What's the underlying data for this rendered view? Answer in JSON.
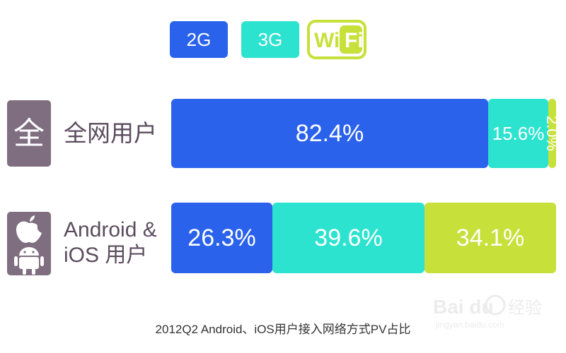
{
  "legend": {
    "items": [
      {
        "label": "2G",
        "color": "#2a62ec"
      },
      {
        "label": "3G",
        "color": "#2ce3cf"
      },
      {
        "label": "WiFi",
        "color": "#c7e03a"
      }
    ]
  },
  "rows": {
    "full": {
      "label": "全网用户",
      "icon_text": "全"
    },
    "android_ios": {
      "label_line1": "Android &",
      "label_line2": "iOS 用户"
    }
  },
  "caption": "2012Q2 Android、iOS用户接入网络方式PV占比",
  "watermark": {
    "brand": "Bai du",
    "sub": "jingyan.baidu.com",
    "cn": "经验"
  },
  "chart_data": {
    "type": "bar",
    "orientation": "horizontal-stacked-100",
    "categories": [
      "全网用户",
      "Android & iOS 用户"
    ],
    "series": [
      {
        "name": "2G",
        "values": [
          82.4,
          26.3
        ],
        "labels": [
          "82.4%",
          "26.3%"
        ],
        "color": "#2a62ec"
      },
      {
        "name": "3G",
        "values": [
          15.6,
          39.6
        ],
        "labels": [
          "15.6%",
          "39.6%"
        ],
        "color": "#2ce3cf"
      },
      {
        "name": "WiFi",
        "values": [
          2.0,
          34.1
        ],
        "labels": [
          "2.0%",
          "34.1%"
        ],
        "color": "#c7e03a"
      }
    ],
    "title": "2012Q2 Android、iOS用户接入网络方式PV占比",
    "legend": "top"
  }
}
